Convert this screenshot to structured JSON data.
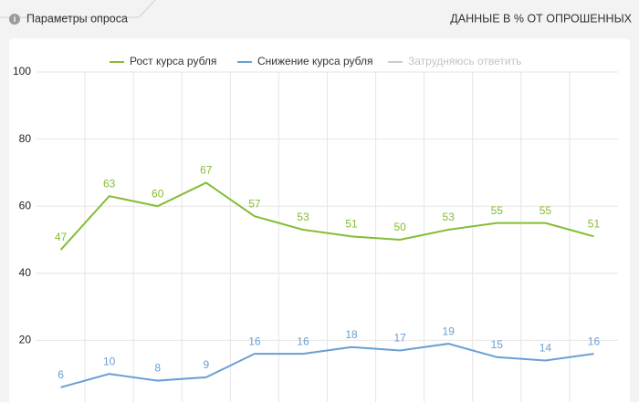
{
  "header": {
    "params": "Параметры опроса",
    "note": "ДАННЫЕ В % ОТ ОПРОШЕННЫХ"
  },
  "chart_data": {
    "type": "line",
    "categories": [
      null,
      null,
      null,
      null,
      null,
      null,
      null,
      null,
      null,
      null,
      null,
      null
    ],
    "series": [
      {
        "name": "Рост курса рубля",
        "color": "#84bd35",
        "visible": true,
        "values": [
          47,
          63,
          60,
          67,
          57,
          53,
          51,
          50,
          53,
          55,
          55,
          51
        ]
      },
      {
        "name": "Снижение курса рубля",
        "color": "#6a9fd3",
        "visible": true,
        "values": [
          6,
          10,
          8,
          9,
          16,
          16,
          18,
          17,
          19,
          15,
          14,
          16
        ]
      },
      {
        "name": "Затрудняюсь ответить",
        "color": "#cccccc",
        "visible": false
      }
    ],
    "ylim": [
      0,
      100
    ],
    "yticks": [
      20,
      40,
      60,
      80,
      100
    ],
    "grid": true,
    "data_labels": true
  }
}
